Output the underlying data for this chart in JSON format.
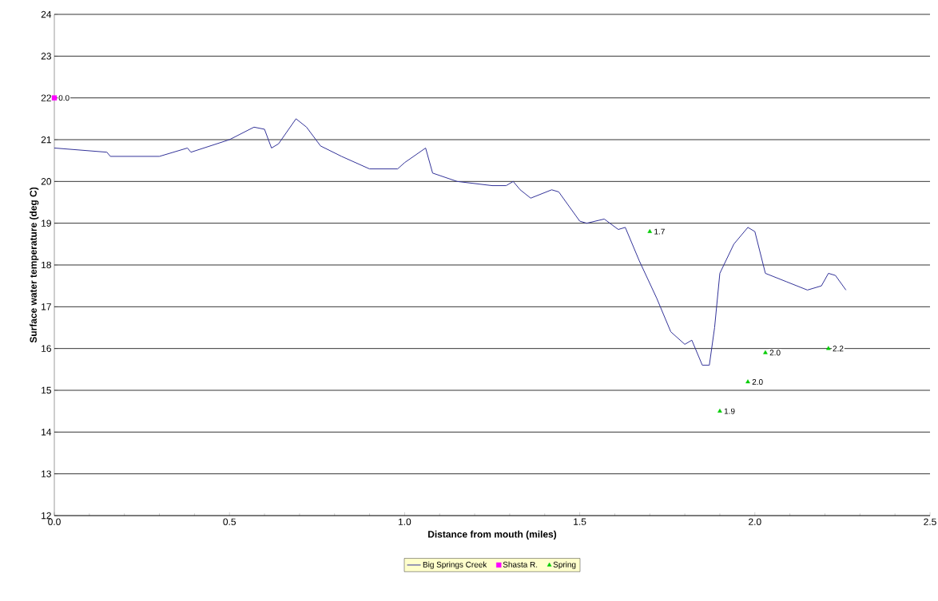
{
  "chart_data": {
    "type": "line",
    "xlabel": "Distance from mouth (miles)",
    "ylabel": "Surface water temperature (deg C)",
    "xlim": [
      0,
      2.5
    ],
    "xticks": [
      {
        "value": 0,
        "label": "0.0"
      },
      0.5,
      {
        "value": 1,
        "label": "1.0"
      },
      1.5,
      {
        "value": 2,
        "label": "2.0"
      },
      2.5
    ],
    "ylim": [
      12,
      24
    ],
    "yticks": [
      12,
      13,
      14,
      15,
      16,
      17,
      18,
      19,
      20,
      21,
      22,
      23,
      24
    ],
    "grid": "y",
    "legend": "bottom",
    "line_style": "solid",
    "series": [
      {
        "name": "Big Springs Creek",
        "color": "#333399",
        "marker": "none",
        "x": [
          0,
          0.15,
          0.16,
          0.3,
          0.38,
          0.39,
          0.5,
          0.57,
          0.6,
          0.62,
          0.64,
          0.69,
          0.72,
          0.76,
          0.82,
          0.9,
          0.98,
          1.0,
          1.06,
          1.08,
          1.15,
          1.25,
          1.29,
          1.31,
          1.33,
          1.36,
          1.42,
          1.44,
          1.5,
          1.52,
          1.57,
          1.61,
          1.63,
          1.67,
          1.72,
          1.76,
          1.8,
          1.82,
          1.85,
          1.87,
          1.885,
          1.9,
          1.94,
          1.98,
          2.0,
          2.03,
          2.09,
          2.15,
          2.19,
          2.21,
          2.23,
          2.26
        ],
        "values": [
          20.8,
          20.7,
          20.6,
          20.6,
          20.8,
          20.7,
          21.0,
          21.3,
          21.25,
          20.8,
          20.9,
          21.5,
          21.3,
          20.85,
          20.6,
          20.3,
          20.3,
          20.45,
          20.8,
          20.2,
          20.0,
          19.9,
          19.9,
          20.0,
          19.8,
          19.6,
          19.8,
          19.75,
          19.05,
          19.0,
          19.1,
          18.85,
          18.9,
          18.1,
          17.2,
          16.4,
          16.1,
          16.2,
          15.6,
          15.6,
          16.5,
          17.8,
          18.5,
          18.9,
          18.8,
          17.8,
          17.6,
          17.4,
          17.5,
          17.8,
          17.75,
          17.4
        ]
      },
      {
        "name": "Shasta R.",
        "type": "scatter",
        "color": "#ff00ff",
        "marker": "square",
        "x": [
          0
        ],
        "values": [
          22
        ]
      },
      {
        "name": "Spring",
        "type": "scatter",
        "color": "#00cc00",
        "marker": "triangle",
        "x": [
          1.7,
          1.9,
          1.98,
          2.03,
          2.21
        ],
        "values": [
          18.8,
          14.5,
          15.2,
          15.9,
          16.0
        ]
      }
    ],
    "annotations": [
      {
        "text": "0.0",
        "x": 0,
        "y": 22
      },
      {
        "text": "1.7",
        "x": 1.7,
        "y": 18.8
      },
      {
        "text": "1.9",
        "x": 1.9,
        "y": 14.5
      },
      {
        "text": "2.0",
        "x": 1.98,
        "y": 15.2
      },
      {
        "text": "2.0",
        "x": 2.03,
        "y": 15.9
      },
      {
        "text": "2.2",
        "x": 2.21,
        "y": 16.0
      }
    ]
  }
}
